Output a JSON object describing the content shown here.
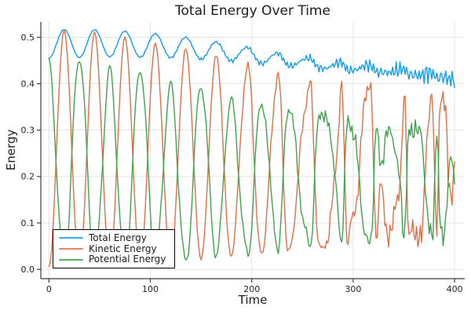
{
  "chart_data": {
    "type": "line",
    "title": "Total Energy Over Time",
    "xlabel": "Time",
    "ylabel": "Energy",
    "xlim": [
      -8,
      410
    ],
    "ylim": [
      -0.02,
      0.533
    ],
    "xticks": [
      0,
      100,
      200,
      300,
      400
    ],
    "yticks": [
      0.0,
      0.1,
      0.2,
      0.3,
      0.4,
      0.5
    ],
    "xtick_labels": [
      "0",
      "100",
      "200",
      "300",
      "400"
    ],
    "ytick_labels": [
      "0.0",
      "0.1",
      "0.2",
      "0.3",
      "0.4",
      "0.5"
    ],
    "grid": true,
    "legend_position": "bottom-left",
    "style": {
      "background": "#ffffff",
      "grid_color": "#e4e4e4",
      "axis_color": "#3c3c3c",
      "text_color": "#232323",
      "title_color": "#1c1c1c"
    },
    "series": [
      {
        "id": "total-energy",
        "name": "Total Energy",
        "color": "#119cf0",
        "mode": "bump",
        "base_points": [
          [
            0,
            0.455
          ],
          [
            60,
            0.458
          ],
          [
            120,
            0.456
          ],
          [
            180,
            0.449
          ],
          [
            240,
            0.438
          ],
          [
            300,
            0.428
          ],
          [
            360,
            0.419
          ],
          [
            400,
            0.406
          ]
        ],
        "bump_points": [
          [
            0,
            0.062
          ],
          [
            60,
            0.058
          ],
          [
            120,
            0.049
          ],
          [
            180,
            0.036
          ],
          [
            240,
            0.022
          ],
          [
            300,
            0.015
          ],
          [
            360,
            0.011
          ],
          [
            400,
            0.008
          ]
        ],
        "noise": [
          0.0015,
          0.027,
          2.5
        ],
        "phase_scale": 0.6,
        "seed": 3.9
      },
      {
        "id": "kinetic-energy",
        "name": "Kinetic Energy",
        "color": "#e26f46",
        "mode": "sin2",
        "peak_points": [
          [
            15,
            0.515
          ],
          [
            45,
            0.511
          ],
          [
            75,
            0.5
          ],
          [
            105,
            0.487
          ],
          [
            135,
            0.476
          ],
          [
            165,
            0.462
          ],
          [
            195,
            0.443
          ],
          [
            225,
            0.423
          ],
          [
            255,
            0.409
          ],
          [
            285,
            0.401
          ],
          [
            315,
            0.398
          ],
          [
            345,
            0.387
          ],
          [
            375,
            0.373
          ],
          [
            400,
            0.366
          ]
        ],
        "noise": [
          0.002,
          0.034,
          2.2
        ],
        "phase_scale": 1.0,
        "seed": 1.3
      },
      {
        "id": "potential-energy",
        "name": "Potential Energy",
        "color": "#3da44d",
        "mode": "cos2",
        "peak_points": [
          [
            0,
            0.455
          ],
          [
            30,
            0.448
          ],
          [
            60,
            0.44
          ],
          [
            90,
            0.424
          ],
          [
            120,
            0.406
          ],
          [
            150,
            0.39
          ],
          [
            180,
            0.371
          ],
          [
            210,
            0.352
          ],
          [
            240,
            0.34
          ],
          [
            270,
            0.331
          ],
          [
            300,
            0.322
          ],
          [
            330,
            0.312
          ],
          [
            360,
            0.303
          ],
          [
            390,
            0.298
          ],
          [
            400,
            0.297
          ]
        ],
        "noise": [
          0.002,
          0.03,
          2.2
        ],
        "phase_scale": 0.92,
        "wobble": [
          0.06,
          0.31
        ],
        "seed": 2.6
      }
    ],
    "synthesis": {
      "dt": 1.25,
      "t_end": 400,
      "period": 30,
      "floor_points": [
        [
          0,
          0.005
        ],
        [
          100,
          0.012
        ],
        [
          200,
          0.032
        ],
        [
          300,
          0.055
        ],
        [
          400,
          0.075
        ]
      ],
      "chaos_start": 160,
      "chaos_max": 1.35,
      "min_value": 0.004
    }
  }
}
